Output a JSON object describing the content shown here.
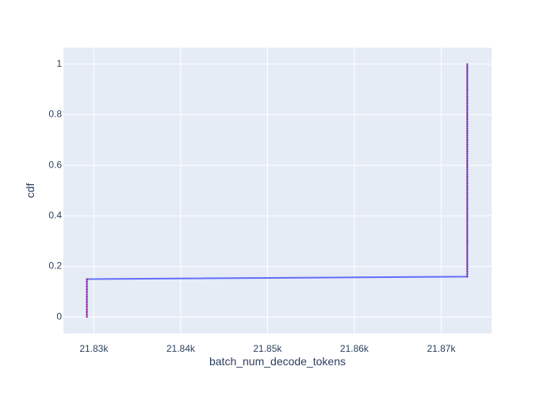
{
  "chart_data": {
    "type": "line",
    "title": "",
    "xlabel": "batch_num_decode_tokens",
    "ylabel": "cdf",
    "xlim": [
      21826.5,
      21875.8
    ],
    "ylim": [
      -0.065,
      1.065
    ],
    "x_ticks": [
      {
        "value": 21830,
        "label": "21.83k"
      },
      {
        "value": 21840,
        "label": "21.84k"
      },
      {
        "value": 21850,
        "label": "21.85k"
      },
      {
        "value": 21860,
        "label": "21.86k"
      },
      {
        "value": 21870,
        "label": "21.87k"
      }
    ],
    "y_ticks": [
      {
        "value": 0,
        "label": "0"
      },
      {
        "value": 0.2,
        "label": "0.2"
      },
      {
        "value": 0.4,
        "label": "0.4"
      },
      {
        "value": 0.6,
        "label": "0.6"
      },
      {
        "value": 0.8,
        "label": "0.8"
      },
      {
        "value": 1,
        "label": "1"
      }
    ],
    "grid": true,
    "series": [
      {
        "color": "#636efa",
        "points": [
          {
            "x": 21829.2,
            "y": 0.0
          },
          {
            "x": 21829.2,
            "y": 0.02
          },
          {
            "x": 21829.2,
            "y": 0.05
          },
          {
            "x": 21829.2,
            "y": 0.08
          },
          {
            "x": 21829.2,
            "y": 0.11
          },
          {
            "x": 21829.2,
            "y": 0.14
          },
          {
            "x": 21829.2,
            "y": 0.15
          },
          {
            "x": 21873.0,
            "y": 0.16
          },
          {
            "x": 21873.0,
            "y": 0.2
          },
          {
            "x": 21873.0,
            "y": 0.3
          },
          {
            "x": 21873.0,
            "y": 0.4
          },
          {
            "x": 21873.0,
            "y": 0.5
          },
          {
            "x": 21873.0,
            "y": 0.6
          },
          {
            "x": 21873.0,
            "y": 0.7
          },
          {
            "x": 21873.0,
            "y": 0.8
          },
          {
            "x": 21873.0,
            "y": 0.9
          },
          {
            "x": 21873.0,
            "y": 1.0
          }
        ]
      }
    ],
    "marker_color": "#b0005f"
  }
}
